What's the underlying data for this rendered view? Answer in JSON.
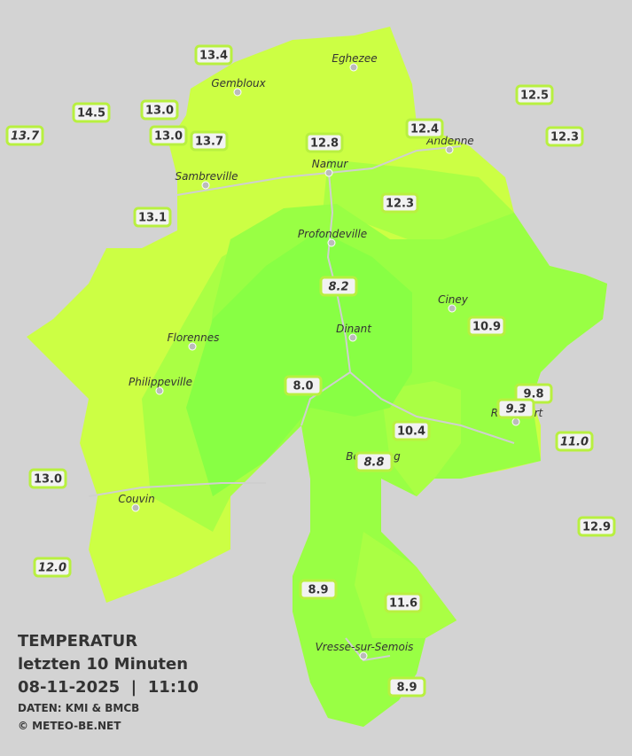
{
  "legend": {
    "title": "TEMPERATUR",
    "subtitle": "letzten 10 Minuten",
    "datetime": "08-11-2025  |  11:10",
    "source": "DATEN: KMI & BMCB",
    "copyright": "© METEO-BE.NET"
  },
  "cities": [
    "Eghezee",
    "Gembloux",
    "Andenne",
    "Namur",
    "Sambreville",
    "Profondeville",
    "Ciney",
    "Dinant",
    "Florennes",
    "Philippeville",
    "Rochefort",
    "Beauraing",
    "Couvin",
    "Vresse-sur-Semois"
  ],
  "stations": [
    {
      "value": "13.4"
    },
    {
      "value": "14.5"
    },
    {
      "value": "13.0"
    },
    {
      "value": "13.7",
      "italic": true
    },
    {
      "value": "13.0"
    },
    {
      "value": "13.7"
    },
    {
      "value": "12.8"
    },
    {
      "value": "12.4"
    },
    {
      "value": "12.5"
    },
    {
      "value": "12.3"
    },
    {
      "value": "12.3"
    },
    {
      "value": "13.1"
    },
    {
      "value": "8.2",
      "italic": true
    },
    {
      "value": "10.9"
    },
    {
      "value": "8.0"
    },
    {
      "value": "9.8"
    },
    {
      "value": "9.3",
      "italic": true
    },
    {
      "value": "10.4"
    },
    {
      "value": "11.0",
      "italic": true
    },
    {
      "value": "8.8",
      "italic": true
    },
    {
      "value": "13.0"
    },
    {
      "value": "12.9"
    },
    {
      "value": "12.0",
      "italic": true
    },
    {
      "value": "8.9"
    },
    {
      "value": "11.6"
    },
    {
      "value": "8.9"
    }
  ]
}
